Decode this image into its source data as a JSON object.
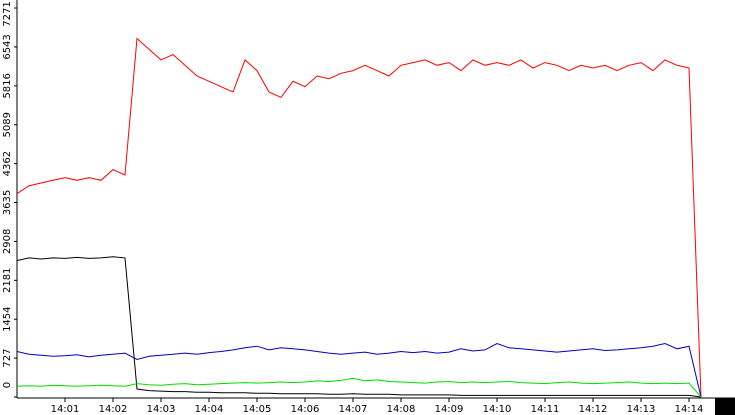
{
  "chart_data": {
    "type": "line",
    "x": [
      0,
      0.25,
      0.5,
      0.75,
      1,
      1.25,
      1.5,
      1.75,
      2,
      2.25,
      2.5,
      2.75,
      3,
      3.25,
      3.5,
      3.75,
      4,
      4.25,
      4.5,
      4.75,
      5,
      5.25,
      5.5,
      5.75,
      6,
      6.25,
      6.5,
      6.75,
      7,
      7.25,
      7.5,
      7.75,
      8,
      8.25,
      8.5,
      8.75,
      9,
      9.25,
      9.5,
      9.75,
      10,
      10.25,
      10.5,
      10.75,
      11,
      11.25,
      11.5,
      11.75,
      12,
      12.25,
      12.5,
      12.75,
      13,
      13.25,
      13.5,
      13.75,
      14,
      14.25
    ],
    "series": [
      {
        "color": "#ff0000",
        "values": [
          3800,
          3950,
          4000,
          4050,
          4100,
          4050,
          4100,
          4050,
          4250,
          4150,
          6700,
          6500,
          6300,
          6400,
          6200,
          6000,
          5900,
          5800,
          5700,
          6300,
          6100,
          5700,
          5600,
          5900,
          5800,
          6000,
          5950,
          6050,
          6100,
          6200,
          6100,
          6000,
          6200,
          6250,
          6300,
          6200,
          6250,
          6100,
          6300,
          6200,
          6250,
          6200,
          6300,
          6150,
          6250,
          6200,
          6100,
          6200,
          6150,
          6200,
          6100,
          6200,
          6250,
          6100,
          6300,
          6200,
          6150,
          0
        ]
      },
      {
        "color": "#000000",
        "values": [
          2550,
          2600,
          2580,
          2600,
          2590,
          2610,
          2590,
          2600,
          2620,
          2600,
          150,
          120,
          110,
          100,
          100,
          90,
          90,
          80,
          80,
          80,
          70,
          70,
          60,
          60,
          60,
          60,
          50,
          50,
          60,
          50,
          50,
          50,
          40,
          40,
          40,
          40,
          40,
          30,
          30,
          30,
          30,
          30,
          30,
          30,
          30,
          30,
          30,
          30,
          30,
          30,
          30,
          30,
          30,
          30,
          30,
          30,
          30,
          0
        ]
      },
      {
        "color": "#0000c0",
        "values": [
          850,
          800,
          780,
          760,
          770,
          790,
          750,
          780,
          800,
          820,
          700,
          760,
          780,
          800,
          820,
          800,
          830,
          850,
          880,
          920,
          950,
          880,
          920,
          900,
          880,
          850,
          820,
          800,
          820,
          840,
          800,
          820,
          850,
          830,
          850,
          820,
          840,
          900,
          860,
          880,
          1000,
          920,
          900,
          880,
          860,
          840,
          860,
          880,
          900,
          870,
          880,
          900,
          920,
          950,
          1000,
          900,
          950,
          0
        ]
      },
      {
        "color": "#00dd00",
        "values": [
          200,
          210,
          200,
          220,
          210,
          200,
          210,
          220,
          210,
          200,
          250,
          230,
          220,
          240,
          250,
          230,
          240,
          250,
          260,
          270,
          260,
          270,
          280,
          270,
          280,
          300,
          290,
          310,
          350,
          300,
          320,
          290,
          280,
          270,
          260,
          280,
          290,
          270,
          280,
          270,
          280,
          290,
          270,
          260,
          250,
          270,
          280,
          260,
          250,
          260,
          270,
          280,
          260,
          250,
          260,
          250,
          260,
          0
        ]
      }
    ],
    "xlim": [
      0,
      14.9
    ],
    "xticks": [
      {
        "value": 1,
        "label": "14:01"
      },
      {
        "value": 2,
        "label": "14:02"
      },
      {
        "value": 3,
        "label": "14:03"
      },
      {
        "value": 4,
        "label": "14:04"
      },
      {
        "value": 5,
        "label": "14:05"
      },
      {
        "value": 6,
        "label": "14:06"
      },
      {
        "value": 7,
        "label": "14:07"
      },
      {
        "value": 8,
        "label": "14:08"
      },
      {
        "value": 9,
        "label": "14:09"
      },
      {
        "value": 10,
        "label": "14:10"
      },
      {
        "value": 11,
        "label": "14:11"
      },
      {
        "value": 12,
        "label": "14:12"
      },
      {
        "value": 13,
        "label": "14:13"
      },
      {
        "value": 14,
        "label": "14:14"
      }
    ],
    "ylim": [
      0,
      7271
    ],
    "yticks": [
      0,
      727,
      1454,
      2181,
      2908,
      3635,
      4362,
      5089,
      5816,
      6543,
      7271
    ]
  }
}
